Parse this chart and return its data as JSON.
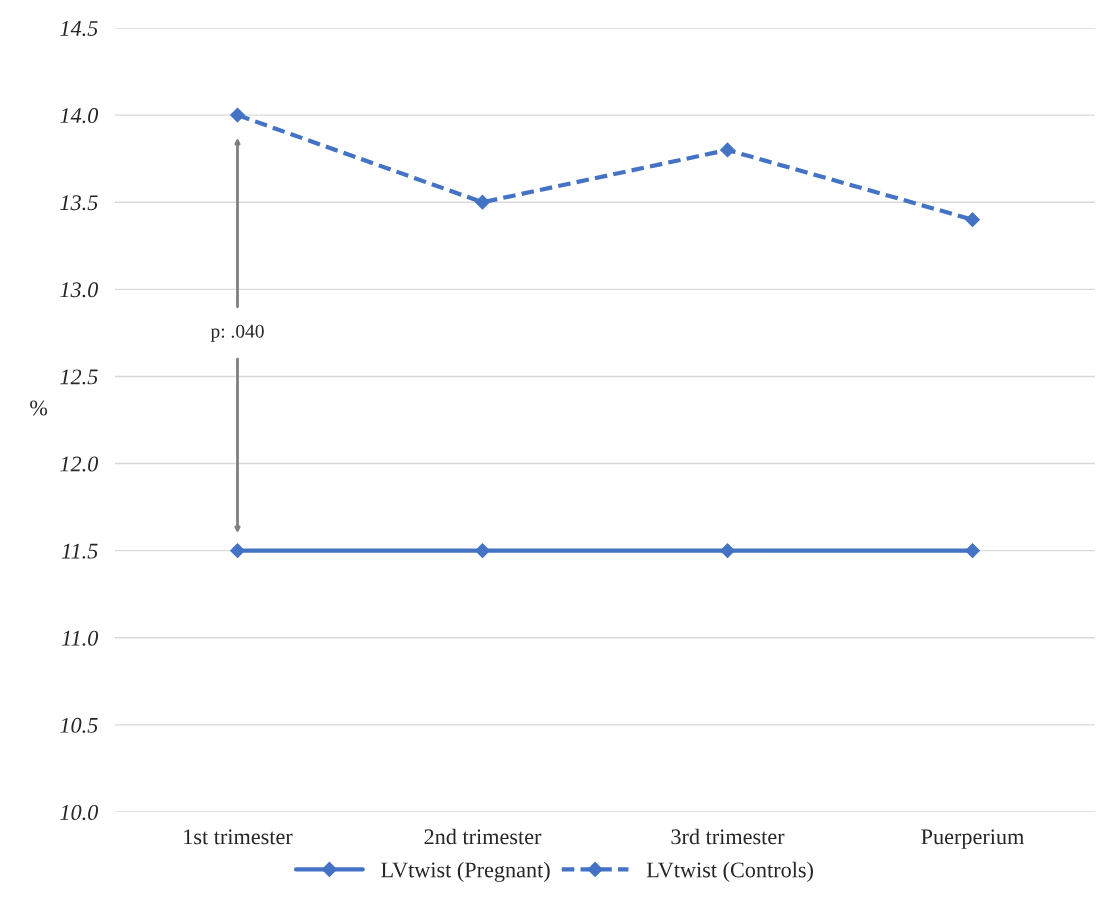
{
  "chart_data": {
    "type": "line",
    "ylabel": "%",
    "categories": [
      "1st trimester",
      "2nd trimester",
      "3rd trimester",
      "Puerperium"
    ],
    "series": [
      {
        "name": "LVtwist (Pregnant)",
        "color": "#4472c4",
        "line_style": "solid",
        "values": [
          11.5,
          11.5,
          11.5,
          11.5
        ]
      },
      {
        "name": "LVtwist (Controls)",
        "color": "#4472c4",
        "line_style": "dashed",
        "values": [
          14.0,
          13.5,
          13.8,
          13.4
        ]
      }
    ],
    "ylim": [
      10.0,
      14.5
    ],
    "yticks": [
      {
        "value": 10,
        "label": "10.0"
      },
      10.5,
      {
        "value": 11,
        "label": "11.0"
      },
      11.5,
      {
        "value": 12,
        "label": "12.0"
      },
      12.5,
      {
        "value": 13,
        "label": "13.0"
      },
      13.5,
      {
        "value": 14,
        "label": "14.0"
      },
      14.5
    ],
    "grid": "y",
    "legend": "bottom",
    "marker": "diamond",
    "annotations": [
      "p: .040"
    ]
  }
}
